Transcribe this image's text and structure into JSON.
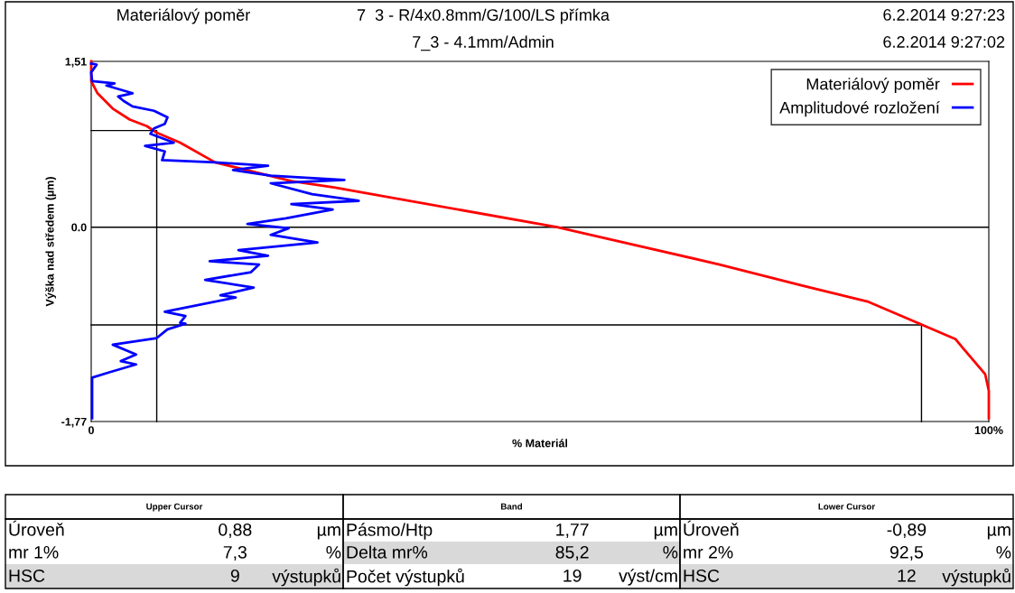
{
  "chart_data": {
    "type": "line",
    "title": "Materiálový poměr",
    "xlabel": "% Materiál",
    "ylabel": "Výška nad středem (µm)",
    "xlim": [
      0,
      100
    ],
    "xticks": [
      0,
      {
        "value": 100,
        "label": "100%"
      }
    ],
    "ylim": [
      -1.77,
      1.51
    ],
    "yticks": [
      {
        "value": -1.77,
        "label": "-1,77"
      },
      {
        "value": 0,
        "label": "0.0"
      },
      {
        "value": 1.51,
        "label": "1,51"
      }
    ],
    "grid": false,
    "legend": "top right",
    "marker": "none",
    "line_style": "solid",
    "ref_lines": [
      {
        "axis": "y",
        "value": 0,
        "color": "#000000"
      }
    ],
    "series": [
      {
        "name": "Materiálový poměr",
        "color": "#ff0000",
        "x": [
          0,
          0,
          0.7,
          2.4,
          4.3,
          6.2,
          7.3,
          9.9,
          13.8,
          17.8,
          22.3,
          27.2,
          29.3,
          51.9,
          70.0,
          79.1,
          86.6,
          92.6,
          96.3,
          97.2,
          99.6,
          100,
          100
        ],
        "values": [
          1.51,
          1.33,
          1.22,
          1.08,
          0.98,
          0.92,
          0.86,
          0.77,
          0.59,
          0.51,
          0.42,
          0.36,
          0.33,
          0.0,
          -0.34,
          -0.53,
          -0.68,
          -0.89,
          -1.02,
          -1.11,
          -1.34,
          -1.49,
          -1.74
        ]
      },
      {
        "name": "Amplitudové rozložení",
        "color": "#0000ff",
        "x": [
          0,
          0.6,
          0,
          0.1,
          2.6,
          1.7,
          4.6,
          3.0,
          3.6,
          4.6,
          7.0,
          8.5,
          8.2,
          7.0,
          6.6,
          9.2,
          6.0,
          8.2,
          7.9,
          13.8,
          19.7,
          15.8,
          20.0,
          28.2,
          20.0,
          24.6,
          29.8,
          22.3,
          26.9,
          21.7,
          17.4,
          22.0,
          20.0,
          25.2,
          16.4,
          19.7,
          13.2,
          18.7,
          17.8,
          12.7,
          18.1,
          14.4,
          16.1,
          8.2,
          10.5,
          9.9,
          10.5,
          8.5,
          7.3,
          2.4,
          5.0,
          3.3,
          5.0,
          2.1,
          0.1,
          0.1
        ],
        "values": [
          1.49,
          1.48,
          1.41,
          1.33,
          1.31,
          1.29,
          1.22,
          1.19,
          1.15,
          1.1,
          1.06,
          1.0,
          0.94,
          0.9,
          0.85,
          0.77,
          0.74,
          0.69,
          0.61,
          0.59,
          0.56,
          0.52,
          0.47,
          0.43,
          0.4,
          0.3,
          0.24,
          0.21,
          0.16,
          0.08,
          0.03,
          -0.01,
          -0.07,
          -0.14,
          -0.21,
          -0.26,
          -0.31,
          -0.34,
          -0.41,
          -0.48,
          -0.55,
          -0.62,
          -0.64,
          -0.77,
          -0.81,
          -0.87,
          -0.88,
          -0.93,
          -1.01,
          -1.07,
          -1.16,
          -1.22,
          -1.25,
          -1.32,
          -1.37,
          -1.74
        ]
      },
      {
        "color": "#000000",
        "x": [
          0,
          7.3,
          7.3
        ],
        "values": [
          0.88,
          0.88,
          -1.77
        ]
      },
      {
        "color": "#000000",
        "x": [
          0,
          92.5,
          92.5
        ],
        "values": [
          -0.89,
          -0.89,
          -1.77
        ]
      }
    ],
    "annotations": [
      "7  3 - R/4x0.8mm/G/100/LS přímka",
      "6.2.2014 9:27:23",
      "7_3 - 4.1mm/Admin",
      "6.2.2014 9:27:02",
      "Upper Cursor",
      "Band",
      "Lower Cursor",
      "Úroveň",
      "0,88",
      "µm",
      "Pásmo/Htp",
      "1,77",
      "µm",
      "Úroveň",
      "-0,89",
      "µm",
      "mr 1%",
      "7,3",
      "%",
      "Delta mr%",
      "85,2",
      "%",
      "mr 2%",
      "92,5",
      "%",
      "HSC",
      "9",
      "výstupků",
      "Počet výstupků",
      "19",
      "výst/cm",
      "HSC",
      "12",
      "výstupků"
    ]
  }
}
